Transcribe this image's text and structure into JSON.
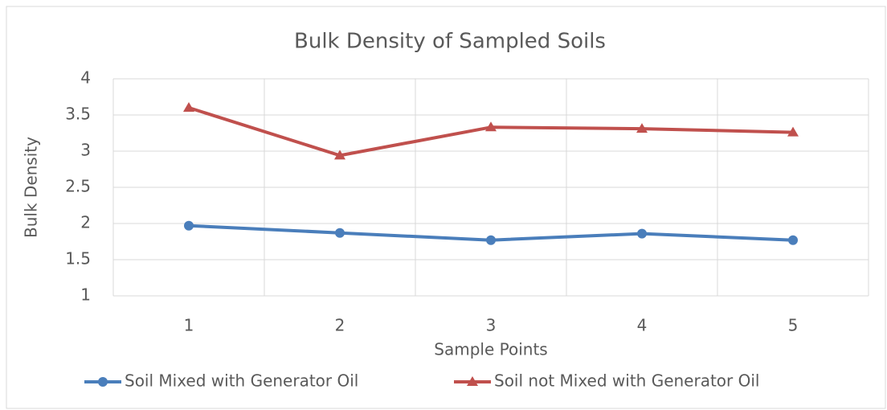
{
  "chart_data": {
    "type": "line",
    "title": "Bulk Density of Sampled Soils",
    "x_label": "Sample Points",
    "y_label": "Bulk Density",
    "categories": [
      "1",
      "2",
      "3",
      "4",
      "5"
    ],
    "series": [
      {
        "name": "Soil Mixed with Generator Oil",
        "color": "#4a7ebb",
        "marker": "circle",
        "values": [
          1.97,
          1.87,
          1.77,
          1.86,
          1.77
        ]
      },
      {
        "name": "Soil not Mixed with Generator Oil",
        "color": "#c0504d",
        "marker": "triangle",
        "values": [
          3.6,
          2.94,
          3.33,
          3.31,
          3.26
        ]
      }
    ],
    "ylim": [
      1,
      4
    ],
    "yticks": [
      1,
      1.5,
      2,
      2.5,
      3,
      3.5,
      4
    ],
    "grid": true,
    "legend": "bottom"
  }
}
